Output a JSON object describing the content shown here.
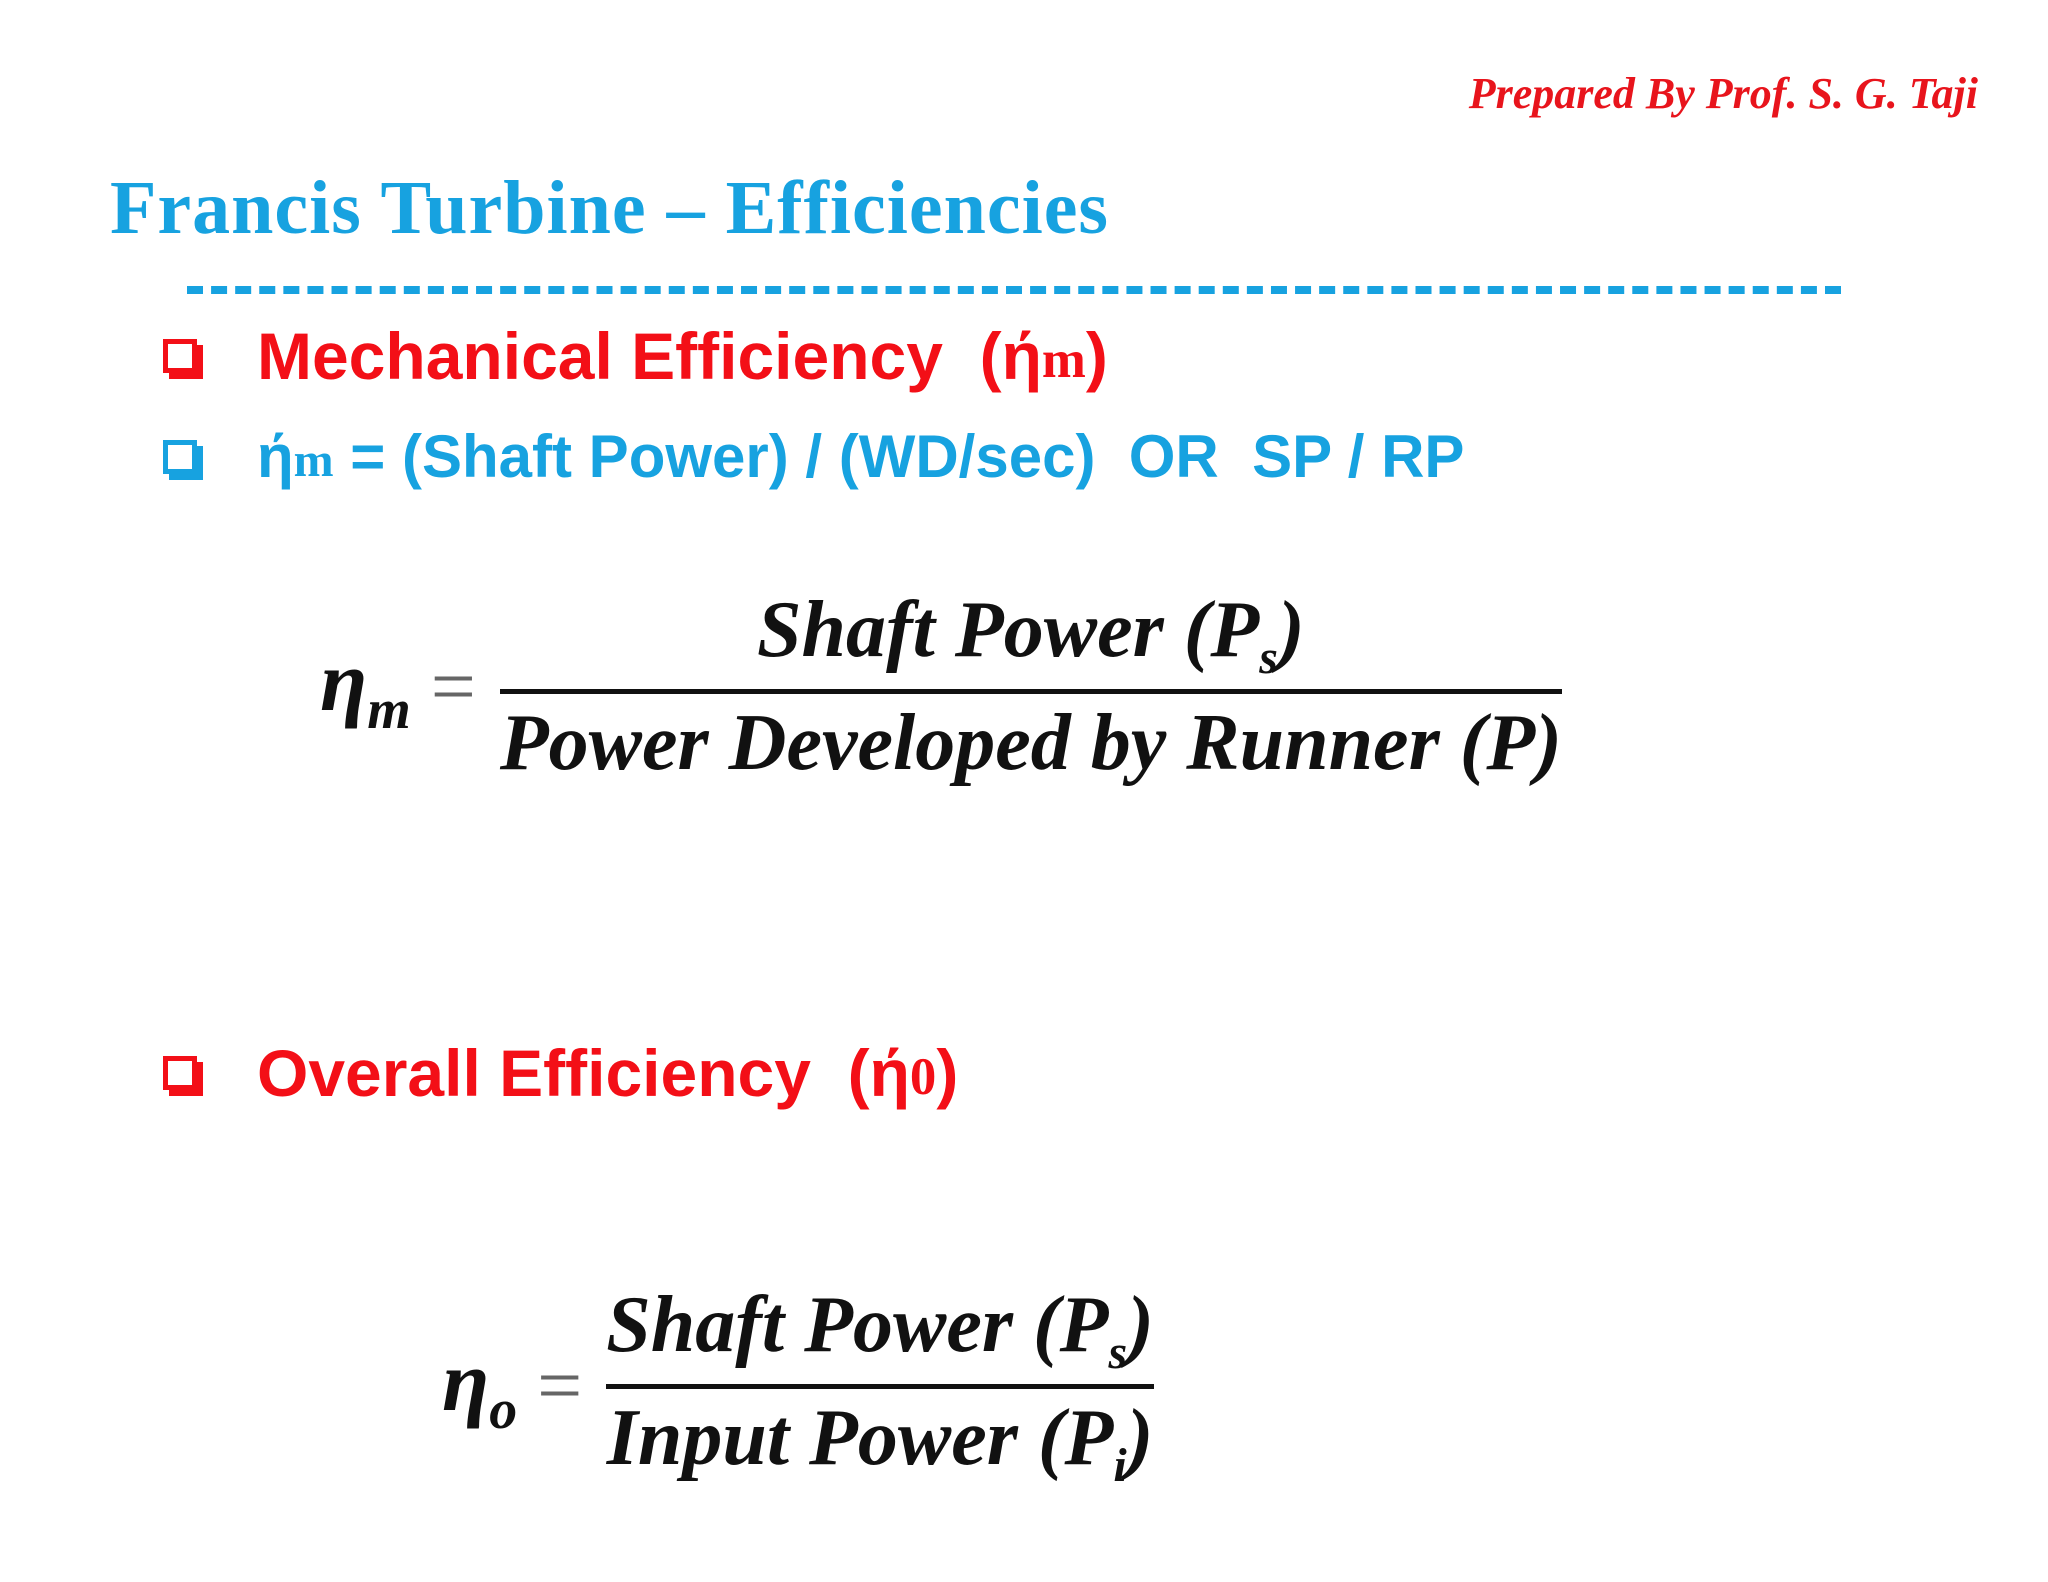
{
  "header": {
    "credit": "Prepared By Prof. S. G. Taji",
    "title": "Francis Turbine – Efficiencies"
  },
  "bullets": [
    {
      "text": "Mechanical Efficiency  (ή",
      "sub": "m",
      "close": ")"
    },
    {
      "text": "ή",
      "sub": "m",
      "close": " = (Shaft Power) / (WD/sec)  OR  SP / RP"
    },
    {
      "text": "Overall Efficiency  (ή",
      "sub": "0",
      "close": ")"
    }
  ],
  "formulas": [
    {
      "lhs": "η",
      "lhs_sub": "m",
      "equals": "=",
      "numerator": "Shaft Power (P",
      "numerator_sub": "s",
      "numerator_close": ")",
      "denominator": "Power Developed by Runner (P)"
    },
    {
      "lhs": "η",
      "lhs_sub": "o",
      "equals": "=",
      "numerator": "Shaft Power (P",
      "numerator_sub": "s",
      "numerator_close": ")",
      "denominator": "Input Power (P",
      "denominator_sub": "i",
      "denominator_close": ")"
    }
  ]
}
